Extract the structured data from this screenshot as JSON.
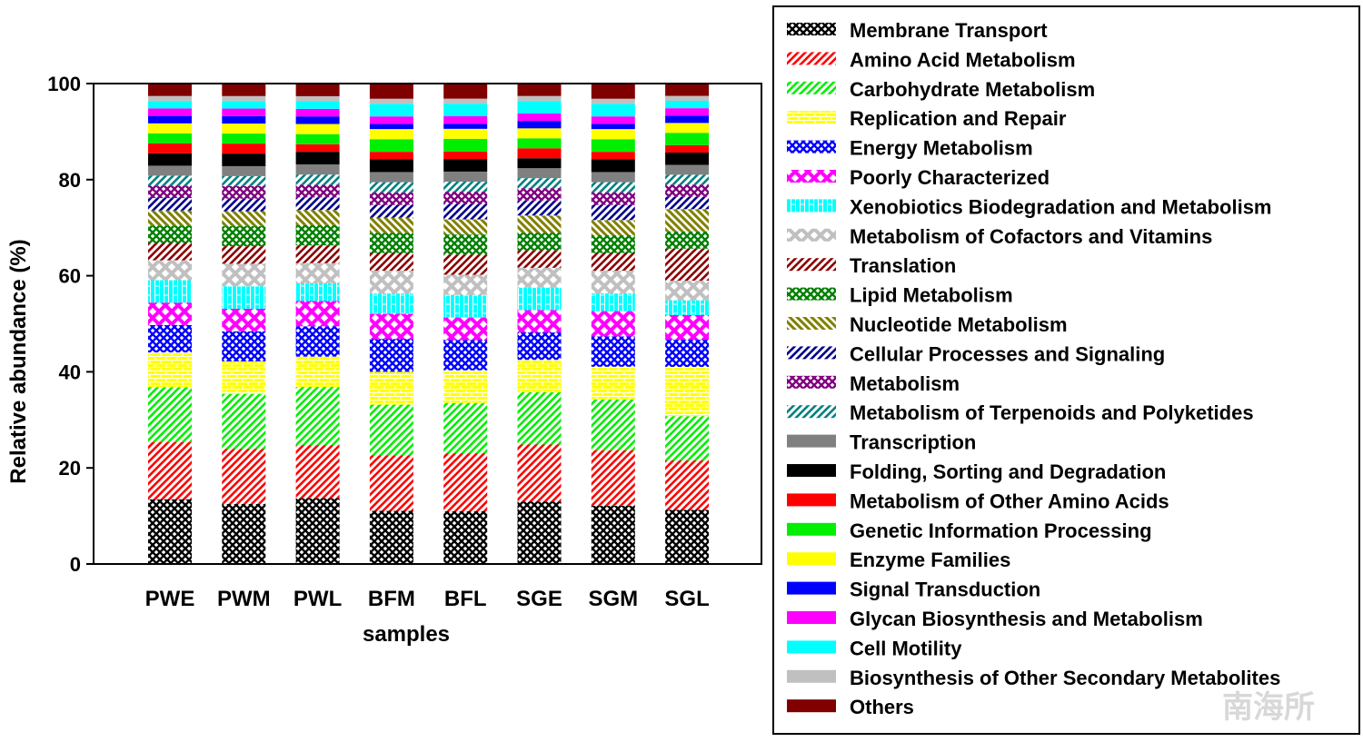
{
  "chart_data": {
    "type": "bar",
    "stacked": true,
    "xlabel": "samples",
    "ylabel": "Relative abundance (%)",
    "ylim": [
      0,
      100
    ],
    "yticks": [
      0,
      20,
      40,
      60,
      80,
      100
    ],
    "grid": false,
    "legend_position": "right",
    "categories": [
      "PWE",
      "PWM",
      "PWL",
      "BFM",
      "BFL",
      "SGE",
      "SGM",
      "SGL"
    ],
    "series": [
      {
        "name": "Membrane Transport",
        "color": "#000000",
        "pattern": "crosshatch",
        "values": [
          13.0,
          12.0,
          13.0,
          10.5,
          10.5,
          12.5,
          11.5,
          11.0
        ]
      },
      {
        "name": "Amino Acid Metabolism",
        "color": "#ff0000",
        "pattern": "diag-up",
        "values": [
          11.5,
          11.0,
          10.5,
          11.0,
          11.5,
          11.5,
          11.0,
          10.0
        ]
      },
      {
        "name": "Carbohydrate Metabolism",
        "color": "#00ee00",
        "pattern": "diag-up",
        "values": [
          11.0,
          11.0,
          11.5,
          10.0,
          10.0,
          10.5,
          10.0,
          9.0
        ]
      },
      {
        "name": "Replication and Repair",
        "color": "#ffff00",
        "pattern": "brick",
        "values": [
          7.0,
          6.5,
          6.0,
          6.5,
          6.5,
          6.5,
          6.5,
          10.0
        ]
      },
      {
        "name": "Energy Metabolism",
        "color": "#0000ff",
        "pattern": "crosshatch",
        "values": [
          5.5,
          6.0,
          6.0,
          6.5,
          6.0,
          5.5,
          6.0,
          5.5
        ]
      },
      {
        "name": "Poorly Characterized",
        "color": "#ff00ff",
        "pattern": "xpattern",
        "values": [
          4.5,
          4.5,
          5.0,
          5.0,
          4.5,
          4.5,
          5.0,
          5.0
        ]
      },
      {
        "name": "Xenobiotics Biodegradation and Metabolism",
        "color": "#00ffff",
        "pattern": "bricks-vertical",
        "values": [
          4.5,
          4.5,
          3.5,
          4.0,
          4.5,
          4.5,
          3.5,
          3.0
        ]
      },
      {
        "name": "Metabolism of Cofactors and Vitamins",
        "color": "#c0c0c0",
        "pattern": "xpattern",
        "values": [
          4.0,
          4.5,
          4.0,
          4.5,
          4.0,
          4.0,
          4.5,
          4.0
        ]
      },
      {
        "name": "Translation",
        "color": "#8b0000",
        "pattern": "diag-up",
        "values": [
          3.5,
          3.5,
          3.5,
          3.5,
          4.0,
          3.5,
          3.5,
          6.5
        ]
      },
      {
        "name": "Lipid Metabolism",
        "color": "#008000",
        "pattern": "crosshatch",
        "values": [
          3.5,
          4.0,
          4.0,
          4.0,
          4.0,
          3.5,
          3.5,
          3.5
        ]
      },
      {
        "name": "Nucleotide Metabolism",
        "color": "#808000",
        "pattern": "diag-down",
        "values": [
          3.0,
          3.0,
          3.0,
          3.0,
          3.0,
          3.5,
          3.0,
          4.5
        ]
      },
      {
        "name": "Cellular Processes and Signaling",
        "color": "#00008b",
        "pattern": "diag-up",
        "values": [
          2.5,
          2.5,
          2.5,
          2.5,
          3.0,
          3.0,
          3.0,
          2.5
        ]
      },
      {
        "name": "Metabolism",
        "color": "#800080",
        "pattern": "crosshatch",
        "values": [
          2.5,
          2.5,
          2.5,
          2.5,
          2.5,
          2.5,
          2.5,
          2.5
        ]
      },
      {
        "name": "Metabolism of Terpenoids and Polyketides",
        "color": "#008080",
        "pattern": "diag-up",
        "values": [
          2.0,
          2.0,
          2.0,
          2.0,
          2.0,
          2.0,
          2.0,
          2.0
        ]
      },
      {
        "name": "Transcription",
        "color": "#808080",
        "pattern": "solid",
        "values": [
          2.0,
          2.0,
          2.0,
          2.0,
          2.0,
          2.0,
          2.0,
          2.0
        ]
      },
      {
        "name": "Folding, Sorting and Degradation",
        "color": "#000000",
        "pattern": "solid",
        "values": [
          2.5,
          2.5,
          2.5,
          2.5,
          2.5,
          2.0,
          2.5,
          2.5
        ]
      },
      {
        "name": "Metabolism of Other Amino Acids",
        "color": "#ff0000",
        "pattern": "solid",
        "values": [
          2.0,
          2.0,
          1.5,
          1.5,
          1.5,
          2.0,
          1.5,
          1.5
        ]
      },
      {
        "name": "Genetic Information Processing",
        "color": "#00ee00",
        "pattern": "solid",
        "values": [
          2.0,
          2.0,
          2.0,
          2.5,
          2.5,
          2.0,
          2.5,
          2.5
        ]
      },
      {
        "name": "Enzyme Families",
        "color": "#ffff00",
        "pattern": "solid",
        "values": [
          2.0,
          2.0,
          2.0,
          2.0,
          2.0,
          2.0,
          2.0,
          2.0
        ]
      },
      {
        "name": "Signal Transduction",
        "color": "#0000ff",
        "pattern": "solid",
        "values": [
          1.5,
          1.5,
          1.5,
          1.0,
          1.0,
          1.5,
          1.0,
          1.5
        ]
      },
      {
        "name": "Glycan Biosynthesis and Metabolism",
        "color": "#ff00ff",
        "pattern": "solid",
        "values": [
          1.5,
          1.5,
          1.5,
          1.5,
          1.5,
          1.5,
          1.5,
          1.5
        ]
      },
      {
        "name": "Cell Motility",
        "color": "#00ffff",
        "pattern": "solid",
        "values": [
          1.5,
          1.5,
          1.5,
          2.5,
          2.5,
          2.5,
          2.5,
          1.5
        ]
      },
      {
        "name": "Biosynthesis of Other Secondary Metabolites",
        "color": "#c0c0c0",
        "pattern": "solid",
        "values": [
          1.0,
          1.0,
          1.0,
          1.0,
          1.0,
          1.0,
          1.0,
          1.0
        ]
      },
      {
        "name": "Others",
        "color": "#800000",
        "pattern": "solid",
        "values": [
          2.5,
          2.5,
          2.5,
          3.0,
          3.0,
          2.5,
          3.0,
          2.5
        ]
      }
    ]
  },
  "watermark": "南海所"
}
